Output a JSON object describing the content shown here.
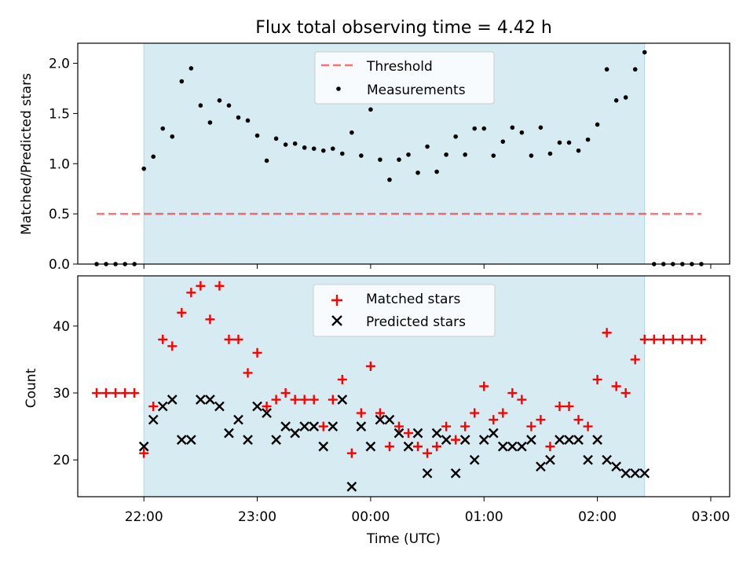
{
  "colors": {
    "band": "#add8e6",
    "threshold": "#ff0000",
    "measurement": "#000000",
    "matched": "#ff0000",
    "predicted": "#000000"
  },
  "chart_data": [
    {
      "type": "scatter",
      "title": "Flux total observing time = 4.42 h",
      "xlabel": "",
      "ylabel": "Matched/Predicted stars",
      "x_unit": "hours UTC",
      "xlim": [
        "21:25",
        "03:10"
      ],
      "ylim": [
        0,
        2.2
      ],
      "yticks": [
        "0.0",
        "0.5",
        "1.0",
        "1.5",
        "2.0"
      ],
      "shaded_interval": [
        "22:00",
        "02:25"
      ],
      "threshold": {
        "name": "Threshold",
        "value": 0.5,
        "x_range": [
          "21:35",
          "02:55"
        ]
      },
      "legend": {
        "placement": "top-center",
        "entries": [
          "Threshold",
          "Measurements"
        ]
      },
      "series": [
        {
          "name": "Measurements",
          "x": [
            "21:35",
            "21:40",
            "21:45",
            "21:50",
            "21:55",
            "22:00",
            "22:05",
            "22:10",
            "22:15",
            "22:20",
            "22:25",
            "22:30",
            "22:35",
            "22:40",
            "22:45",
            "22:50",
            "22:55",
            "23:00",
            "23:05",
            "23:10",
            "23:15",
            "23:20",
            "23:25",
            "23:30",
            "23:35",
            "23:40",
            "23:45",
            "23:50",
            "23:55",
            "00:00",
            "00:05",
            "00:10",
            "00:15",
            "00:20",
            "00:25",
            "00:30",
            "00:35",
            "00:40",
            "00:45",
            "00:50",
            "00:55",
            "01:00",
            "01:05",
            "01:10",
            "01:15",
            "01:20",
            "01:25",
            "01:30",
            "01:35",
            "01:40",
            "01:45",
            "01:50",
            "01:55",
            "02:00",
            "02:05",
            "02:10",
            "02:15",
            "02:20",
            "02:25",
            "02:30",
            "02:35",
            "02:40",
            "02:45",
            "02:50",
            "02:55"
          ],
          "y": [
            0,
            0,
            0,
            0,
            0,
            0.95,
            1.07,
            1.35,
            1.27,
            1.82,
            1.95,
            1.58,
            1.41,
            1.63,
            1.58,
            1.46,
            1.43,
            1.28,
            1.03,
            1.25,
            1.19,
            1.2,
            1.16,
            1.15,
            1.13,
            1.15,
            1.1,
            1.31,
            1.08,
            1.54,
            1.04,
            0.84,
            1.04,
            1.09,
            0.91,
            1.17,
            0.92,
            1.09,
            1.27,
            1.09,
            1.35,
            1.35,
            1.08,
            1.22,
            1.36,
            1.31,
            1.08,
            1.36,
            1.1,
            1.21,
            1.21,
            1.13,
            1.24,
            1.39,
            1.94,
            1.63,
            1.66,
            1.94,
            2.11,
            0,
            0,
            0,
            0,
            0,
            0
          ]
        }
      ]
    },
    {
      "type": "scatter",
      "title": "",
      "xlabel": "Time (UTC)",
      "ylabel": "Count",
      "xlim": [
        "21:25",
        "03:10"
      ],
      "ylim": [
        14.5,
        47.5
      ],
      "yticks": [
        "20",
        "30",
        "40"
      ],
      "xticks": [
        "22:00",
        "23:00",
        "00:00",
        "01:00",
        "02:00",
        "03:00"
      ],
      "shaded_interval": [
        "22:00",
        "02:25"
      ],
      "legend": {
        "placement": "top-center",
        "entries": [
          "Matched stars",
          "Predicted stars"
        ]
      },
      "series": [
        {
          "name": "Matched stars",
          "x": [
            "21:35",
            "21:40",
            "21:45",
            "21:50",
            "21:55",
            "22:00",
            "22:05",
            "22:10",
            "22:15",
            "22:20",
            "22:25",
            "22:30",
            "22:35",
            "22:40",
            "22:45",
            "22:50",
            "22:55",
            "23:00",
            "23:05",
            "23:10",
            "23:15",
            "23:20",
            "23:25",
            "23:30",
            "23:35",
            "23:40",
            "23:45",
            "23:50",
            "23:55",
            "00:00",
            "00:05",
            "00:10",
            "00:15",
            "00:20",
            "00:25",
            "00:30",
            "00:35",
            "00:40",
            "00:45",
            "00:50",
            "00:55",
            "01:00",
            "01:05",
            "01:10",
            "01:15",
            "01:20",
            "01:25",
            "01:30",
            "01:35",
            "01:40",
            "01:45",
            "01:50",
            "01:55",
            "02:00",
            "02:05",
            "02:10",
            "02:15",
            "02:20",
            "02:25",
            "02:30",
            "02:35",
            "02:40",
            "02:45",
            "02:50",
            "02:55"
          ],
          "y": [
            30,
            30,
            30,
            30,
            30,
            21,
            28,
            38,
            37,
            42,
            45,
            46,
            41,
            46,
            38,
            38,
            33,
            36,
            28,
            29,
            30,
            29,
            29,
            29,
            25,
            29,
            32,
            21,
            27,
            34,
            27,
            22,
            25,
            24,
            22,
            21,
            22,
            25,
            23,
            25,
            27,
            31,
            26,
            27,
            30,
            29,
            25,
            26,
            22,
            28,
            28,
            26,
            25,
            32,
            39,
            31,
            30,
            35,
            38,
            38,
            38,
            38,
            38,
            38,
            38
          ]
        },
        {
          "name": "Predicted stars",
          "x": [
            "22:00",
            "22:05",
            "22:10",
            "22:15",
            "22:20",
            "22:25",
            "22:30",
            "22:35",
            "22:40",
            "22:45",
            "22:50",
            "22:55",
            "23:00",
            "23:05",
            "23:10",
            "23:15",
            "23:20",
            "23:25",
            "23:30",
            "23:35",
            "23:40",
            "23:45",
            "23:50",
            "23:55",
            "00:00",
            "00:05",
            "00:10",
            "00:15",
            "00:20",
            "00:25",
            "00:30",
            "00:35",
            "00:40",
            "00:45",
            "00:50",
            "00:55",
            "01:00",
            "01:05",
            "01:10",
            "01:15",
            "01:20",
            "01:25",
            "01:30",
            "01:35",
            "01:40",
            "01:45",
            "01:50",
            "01:55",
            "02:00",
            "02:05",
            "02:10",
            "02:15",
            "02:20",
            "02:25"
          ],
          "y": [
            22,
            26,
            28,
            29,
            23,
            23,
            29,
            29,
            28,
            24,
            26,
            23,
            28,
            27,
            23,
            25,
            24,
            25,
            25,
            22,
            25,
            29,
            16,
            25,
            22,
            26,
            26,
            24,
            22,
            24,
            18,
            24,
            23,
            18,
            23,
            20,
            23,
            24,
            22,
            22,
            22,
            23,
            19,
            20,
            23,
            23,
            23,
            20,
            23,
            20,
            19,
            18,
            18,
            18
          ]
        }
      ]
    }
  ]
}
